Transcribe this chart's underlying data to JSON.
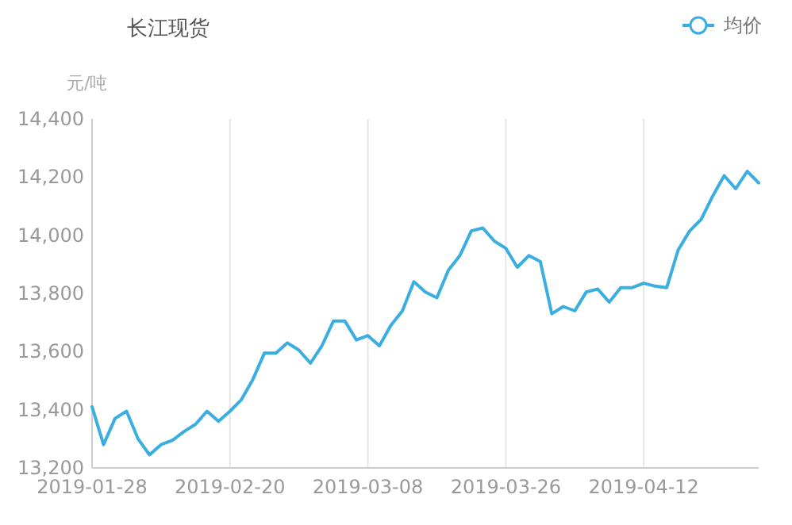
{
  "chart_data": {
    "type": "line",
    "title": "长江现货",
    "ylabel": "元/吨",
    "categories": [
      "2019-01-28",
      null,
      null,
      null,
      null,
      null,
      null,
      null,
      null,
      null,
      null,
      null,
      "2019-02-20",
      null,
      null,
      null,
      null,
      null,
      null,
      null,
      null,
      null,
      null,
      null,
      "2019-03-08",
      null,
      null,
      null,
      null,
      null,
      null,
      null,
      null,
      null,
      null,
      null,
      "2019-03-26",
      null,
      null,
      null,
      null,
      null,
      null,
      null,
      null,
      null,
      null,
      null,
      "2019-04-12",
      null,
      null,
      null,
      null,
      null,
      null,
      null,
      null,
      null,
      null
    ],
    "series": [
      {
        "name": "均价",
        "color": "#3aaee0",
        "values": [
          13410,
          13280,
          13370,
          13395,
          13300,
          13245,
          13280,
          13295,
          13325,
          13350,
          13395,
          13360,
          13395,
          13435,
          13505,
          13595,
          13595,
          13630,
          13605,
          13560,
          13620,
          13705,
          13705,
          13640,
          13655,
          13620,
          13690,
          13740,
          13840,
          13805,
          13785,
          13880,
          13930,
          14015,
          14025,
          13980,
          13955,
          13890,
          13930,
          13910,
          13730,
          13755,
          13740,
          13805,
          13815,
          13770,
          13820,
          13820,
          13835,
          13825,
          13820,
          13950,
          14015,
          14055,
          14135,
          14205,
          14160,
          14220,
          14180
        ]
      }
    ],
    "ylim": [
      13200,
      14400
    ],
    "yticks": [
      {
        "value": 13200,
        "label": "13,200"
      },
      {
        "value": 13400,
        "label": "13,400"
      },
      {
        "value": 13600,
        "label": "13,600"
      },
      {
        "value": 13800,
        "label": "13,800"
      },
      {
        "value": 14000,
        "label": "14,000"
      },
      {
        "value": 14200,
        "label": "14,200"
      },
      {
        "value": 14400,
        "label": "14,400"
      }
    ],
    "grid": "x",
    "legend": "top right"
  }
}
